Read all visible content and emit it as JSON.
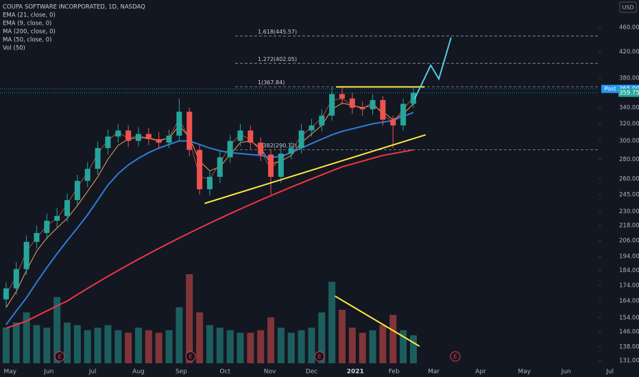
{
  "chart_data": {
    "type": "candlestick",
    "title": "COUPA SOFTWARE INCORPORATED, 1D, NASDAQ",
    "currency": "USD",
    "volume_label": "Vol (50)",
    "ylog": true,
    "ylim": [
      128,
      500
    ],
    "yticks": [
      {
        "value": 460,
        "label": "460.00"
      },
      {
        "value": 420,
        "label": "420.00"
      },
      {
        "value": 380,
        "label": "380.00"
      },
      {
        "value": 340,
        "label": "340.00"
      },
      {
        "value": 320,
        "label": "320.00"
      },
      {
        "value": 300,
        "label": "300.00"
      },
      {
        "value": 280,
        "label": "280.00"
      },
      {
        "value": 260,
        "label": "260.00"
      },
      {
        "value": 245,
        "label": "245.00"
      },
      {
        "value": 230,
        "label": "230.00"
      },
      {
        "value": 218,
        "label": "218.00"
      },
      {
        "value": 206,
        "label": "206.00"
      },
      {
        "value": 194,
        "label": "194.00"
      },
      {
        "value": 184,
        "label": "184.00"
      },
      {
        "value": 174,
        "label": "174.00"
      },
      {
        "value": 164,
        "label": "164.00"
      },
      {
        "value": 154,
        "label": "154.00"
      },
      {
        "value": 146,
        "label": "146.00"
      },
      {
        "value": 138,
        "label": "138.00"
      },
      {
        "value": 131,
        "label": "131.00"
      }
    ],
    "xlim": [
      -0.6,
      59.8
    ],
    "xticks": [
      {
        "value": 0.4,
        "label": "May"
      },
      {
        "value": 4.2,
        "label": "Jun"
      },
      {
        "value": 8.5,
        "label": "Jul"
      },
      {
        "value": 13,
        "label": "Aug"
      },
      {
        "value": 17.2,
        "label": "Sep"
      },
      {
        "value": 21.5,
        "label": "Oct"
      },
      {
        "value": 25.9,
        "label": "Nov"
      },
      {
        "value": 30,
        "label": "Dec"
      },
      {
        "value": 34.3,
        "label": "2021"
      },
      {
        "value": 38.1,
        "label": "Feb"
      },
      {
        "value": 42,
        "label": "Mar"
      },
      {
        "value": 46.6,
        "label": "Apr"
      },
      {
        "value": 50.9,
        "label": "May"
      },
      {
        "value": 55,
        "label": "Jun"
      },
      {
        "value": 59.3,
        "label": "Jul"
      }
    ],
    "up_color": "#26a69a",
    "down_color": "#ef5350",
    "open": [
      165,
      172,
      185,
      205,
      212,
      222,
      226,
      240,
      258,
      270,
      292,
      305,
      312,
      300,
      308,
      302,
      298,
      306,
      335,
      290,
      250,
      262,
      282,
      300,
      312,
      298,
      285,
      262,
      286,
      292,
      312,
      318,
      330,
      358,
      352,
      340,
      338,
      350,
      325,
      318,
      345
    ],
    "high": [
      176,
      190,
      210,
      218,
      228,
      233,
      246,
      264,
      277,
      299,
      313,
      320,
      318,
      316,
      315,
      310,
      313,
      352,
      340,
      295,
      268,
      289,
      307,
      320,
      318,
      304,
      290,
      293,
      299,
      320,
      326,
      338,
      368,
      367,
      360,
      348,
      358,
      355,
      330,
      352,
      368
    ],
    "low": [
      160,
      168,
      181,
      200,
      207,
      216,
      221,
      235,
      252,
      264,
      285,
      298,
      293,
      294,
      295,
      291,
      292,
      300,
      283,
      245,
      244,
      256,
      276,
      294,
      291,
      278,
      245,
      256,
      280,
      286,
      305,
      311,
      324,
      344,
      332,
      330,
      331,
      318,
      292,
      312,
      340
    ],
    "close": [
      172,
      185,
      205,
      212,
      222,
      226,
      240,
      258,
      270,
      292,
      305,
      312,
      300,
      308,
      302,
      298,
      306,
      335,
      290,
      250,
      262,
      282,
      300,
      312,
      298,
      285,
      262,
      286,
      292,
      312,
      318,
      330,
      358,
      352,
      340,
      338,
      350,
      325,
      318,
      345,
      359.75
    ],
    "volume": [
      1.4,
      1.6,
      2.0,
      1.5,
      1.4,
      2.6,
      1.6,
      1.5,
      1.3,
      1.4,
      1.5,
      1.3,
      1.2,
      1.4,
      1.3,
      1.2,
      1.3,
      2.2,
      3.5,
      2.0,
      1.5,
      1.4,
      1.3,
      1.2,
      1.2,
      1.3,
      1.8,
      1.4,
      1.2,
      1.3,
      1.4,
      2.0,
      3.2,
      2.1,
      1.4,
      1.2,
      1.3,
      1.5,
      1.9,
      1.3,
      1.1
    ],
    "series": [
      {
        "name": "EMA (21, close, 0)",
        "color": "#f7a35c",
        "width": 1,
        "values": [
          160,
          170,
          184,
          198,
          208,
          216,
          224,
          235,
          248,
          262,
          280,
          295,
          302,
          304,
          303,
          301,
          303,
          318,
          304,
          278,
          268,
          272,
          285,
          298,
          300,
          292,
          275,
          278,
          284,
          298,
          308,
          318,
          338,
          346,
          343,
          340,
          343,
          335,
          325,
          332,
          345
        ]
      },
      {
        "name": "EMA (9, close, 0)",
        "color": "#e0593f",
        "width": 0.8,
        "values": [
          168,
          180,
          198,
          208,
          218,
          224,
          236,
          252,
          266,
          286,
          301,
          310,
          303,
          306,
          303,
          299,
          304,
          326,
          302,
          262,
          260,
          276,
          295,
          308,
          301,
          289,
          270,
          281,
          289,
          306,
          316,
          327,
          350,
          352,
          343,
          339,
          347,
          331,
          322,
          338,
          354
        ]
      },
      {
        "name": "MA (200, close, 0)",
        "color": "#f23645",
        "width": 2,
        "values": [
          148,
          150,
          152,
          155,
          158,
          161,
          164,
          168,
          172,
          176,
          180,
          184,
          188,
          192,
          196,
          200,
          204,
          208,
          212,
          216,
          220,
          224,
          228,
          232,
          236,
          240,
          244,
          248,
          252,
          256,
          260,
          264,
          268,
          272,
          275,
          278,
          281,
          284,
          286,
          288,
          290
        ]
      },
      {
        "name": "MA (50, close, 0)",
        "color": "#2f7fd6",
        "width": 2,
        "values": [
          150,
          158,
          166,
          176,
          186,
          196,
          206,
          216,
          227,
          240,
          254,
          265,
          274,
          281,
          287,
          292,
          296,
          300,
          300,
          296,
          292,
          289,
          287,
          286,
          285,
          284,
          282,
          283,
          287,
          292,
          297,
          302,
          307,
          311,
          314,
          317,
          320,
          322,
          324,
          329,
          334
        ]
      }
    ],
    "levels": [
      {
        "label": "1.618(445.57)",
        "value": 445.57
      },
      {
        "label": "1.272(402.05)",
        "value": 402.05
      },
      {
        "label": "1(367.84)",
        "value": 367.84
      },
      {
        "label": "0.382(290.12)",
        "value": 290.12
      }
    ],
    "price_lines": [
      {
        "tag": "Post",
        "value": 365,
        "label": "365.00",
        "color": "#2196f3"
      },
      {
        "value": 359.75,
        "label": "359.75",
        "color": "#26a69a"
      }
    ],
    "drawings": [
      {
        "color": "#ffeb3b",
        "x": [
          32.4,
          41.1
        ],
        "y": [
          367.84,
          367.84
        ]
      },
      {
        "color": "#ffeb3b",
        "x": [
          19.5,
          41.2
        ],
        "y": [
          237,
          307
        ]
      },
      {
        "color": "#4dd0e1",
        "x": [
          40.1,
          41.7,
          42.5,
          43.7
        ],
        "y": [
          351,
          399,
          379,
          443
        ]
      }
    ],
    "volume_drawings": [
      {
        "color": "#ffeb3b",
        "x": [
          32.3,
          40.6
        ],
        "y": [
          2.64,
          0.67
        ]
      }
    ],
    "earnings": [
      "E",
      "E",
      "E",
      "E"
    ]
  }
}
